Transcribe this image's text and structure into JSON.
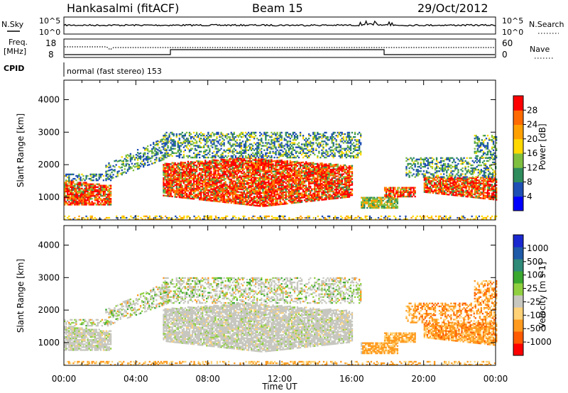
{
  "header": {
    "station": "Hankasalmi (fitACF)",
    "beam": "Beam 15",
    "date": "29/Oct/2012"
  },
  "strips": {
    "nsky_label": "N.Sky",
    "nsearch_label": "N.Search",
    "freq_label_1": "Freq.",
    "freq_label_2": "[MHz]",
    "nave_label": "Nave",
    "cpid_label": "CPID",
    "cpid_value": "normal (fast stereo) 153",
    "left_ticks_top": [
      "10^5",
      "10^0"
    ],
    "right_ticks_top": [
      "10^5",
      "10^0"
    ],
    "freq_ticks": [
      "18",
      "8"
    ],
    "nave_ticks": [
      "60",
      "0"
    ]
  },
  "colors": {
    "power": [
      "#0000ff",
      "#1e4fb4",
      "#2f8c5c",
      "#7fbf3f",
      "#ffd800",
      "#ffa000",
      "#ff6a00",
      "#ff0000"
    ],
    "velocity": [
      "#ff0000",
      "#ff5a00",
      "#ff9a1e",
      "#ffd277",
      "#c7c7c0",
      "#90d040",
      "#3aa82f",
      "#2f8a78",
      "#1f5aa8",
      "#1a28d0"
    ]
  },
  "chart_data": [
    {
      "type": "heatmap",
      "title": "Power",
      "ylabel": "Slant Range [km]",
      "xlabel": "Time UT",
      "x_ticks": [
        "00:00",
        "04:00",
        "08:00",
        "12:00",
        "16:00",
        "20:00",
        "00:00"
      ],
      "y_ticks": [
        "1000",
        "2000",
        "3000",
        "4000"
      ],
      "ylim": [
        300,
        4600
      ],
      "colorbar_label": "Power [dB]",
      "colorbar_ticks": [
        "4",
        "8",
        "12",
        "16",
        "20",
        "24",
        "28"
      ],
      "clim": [
        0,
        32
      ]
    },
    {
      "type": "heatmap",
      "title": "Velocity",
      "ylabel": "Slant Range [km]",
      "xlabel": "Time UT",
      "x_ticks": [
        "00:00",
        "04:00",
        "08:00",
        "12:00",
        "16:00",
        "20:00",
        "00:00"
      ],
      "y_ticks": [
        "1000",
        "2000",
        "3000",
        "4000"
      ],
      "ylim": [
        300,
        4600
      ],
      "colorbar_label": "Velocity [m s-1]",
      "colorbar_ticks": [
        "-1000",
        "-500",
        "-100",
        "-25",
        "25",
        "100",
        "500",
        "1000"
      ]
    }
  ]
}
